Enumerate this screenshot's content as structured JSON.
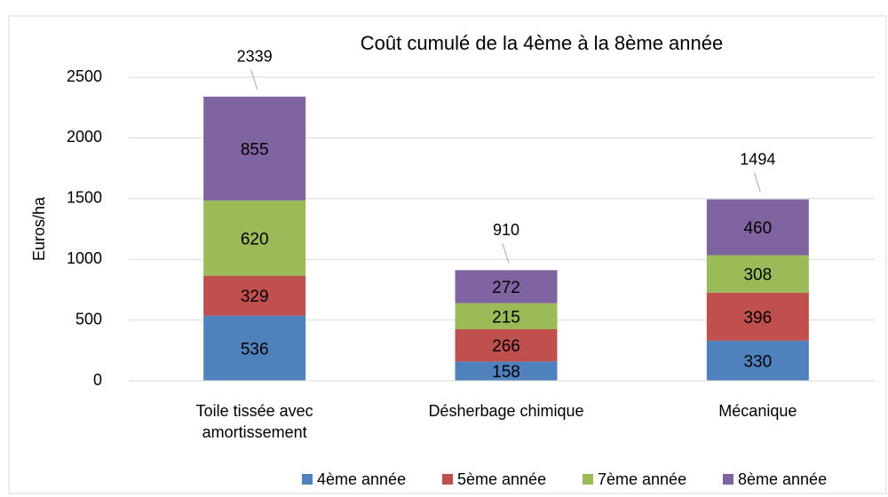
{
  "chart_data": {
    "type": "stacked_bar",
    "title": "Coût cumulé de la 4ème à la 8ème année",
    "y_label": "Euros/ha",
    "categories": [
      "Toile tissée avec amortissement",
      "Désherbage chimique",
      "Mécanique"
    ],
    "series": [
      {
        "name": "4ème année",
        "color": "#4f81bd",
        "values": [
          536,
          158,
          330
        ]
      },
      {
        "name": "5ème année",
        "color": "#c0504d",
        "values": [
          329,
          266,
          396
        ]
      },
      {
        "name": "7ème année",
        "color": "#9bbb59",
        "values": [
          620,
          215,
          308
        ]
      },
      {
        "name": "8ème année",
        "color": "#8064a2",
        "values": [
          855,
          272,
          460
        ]
      }
    ],
    "totals": [
      2339,
      910,
      1494
    ],
    "ylim": [
      0,
      2500
    ],
    "yticks": [
      0,
      500,
      1000,
      1500,
      2000,
      2500
    ],
    "grid": true,
    "legend": "bottom"
  }
}
